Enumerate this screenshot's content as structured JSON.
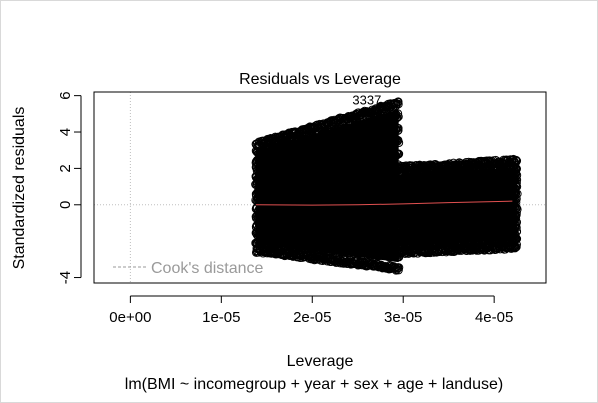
{
  "chart_data": {
    "type": "scatter",
    "title": "Residuals vs Leverage",
    "xlabel": "Leverage",
    "ylabel": "Standardized residuals",
    "subtitle": "lm(BMI ~ incomegroup + year + sex + age + landuse)",
    "xlim": [
      -4e-06,
      4.57e-05
    ],
    "ylim": [
      -4.3,
      6.2
    ],
    "x_ticks": [
      0,
      1e-05,
      2e-05,
      3e-05,
      4e-05
    ],
    "x_tick_labels": [
      "0e+00",
      "1e-05",
      "2e-05",
      "3e-05",
      "4e-05"
    ],
    "y_ticks": [
      -4,
      0,
      2,
      4,
      6
    ],
    "y_tick_labels": [
      "-4",
      "0",
      "2",
      "4",
      "6"
    ],
    "grid": false,
    "reference_lines": {
      "x": 0,
      "y": 0,
      "style": "dotted",
      "color": "#bfbfbf"
    },
    "legend": {
      "label": "Cook's distance",
      "position": "bottom-left",
      "style": "dashed",
      "color": "#9a9a9a"
    },
    "point_clusters": [
      {
        "x_range": [
          1.38e-05,
          2.95e-05
        ],
        "y_min": [
          -2.5,
          -3.5
        ],
        "y_max": [
          3.3,
          5.6
        ]
      },
      {
        "x_range": [
          2.95e-05,
          4.25e-05
        ],
        "y_min": [
          -2.6,
          -2.3
        ],
        "y_max": [
          2.0,
          2.4
        ]
      }
    ],
    "smoother": {
      "color": "#e05050",
      "points": [
        [
          1.38e-05,
          0.0
        ],
        [
          2e-05,
          -0.02
        ],
        [
          2.5e-05,
          0.0
        ],
        [
          3e-05,
          0.05
        ],
        [
          3.5e-05,
          0.12
        ],
        [
          4.2e-05,
          0.2
        ]
      ]
    },
    "annotations": [
      {
        "text": "3337",
        "x": 2.6e-05,
        "y": 5.5
      }
    ]
  }
}
